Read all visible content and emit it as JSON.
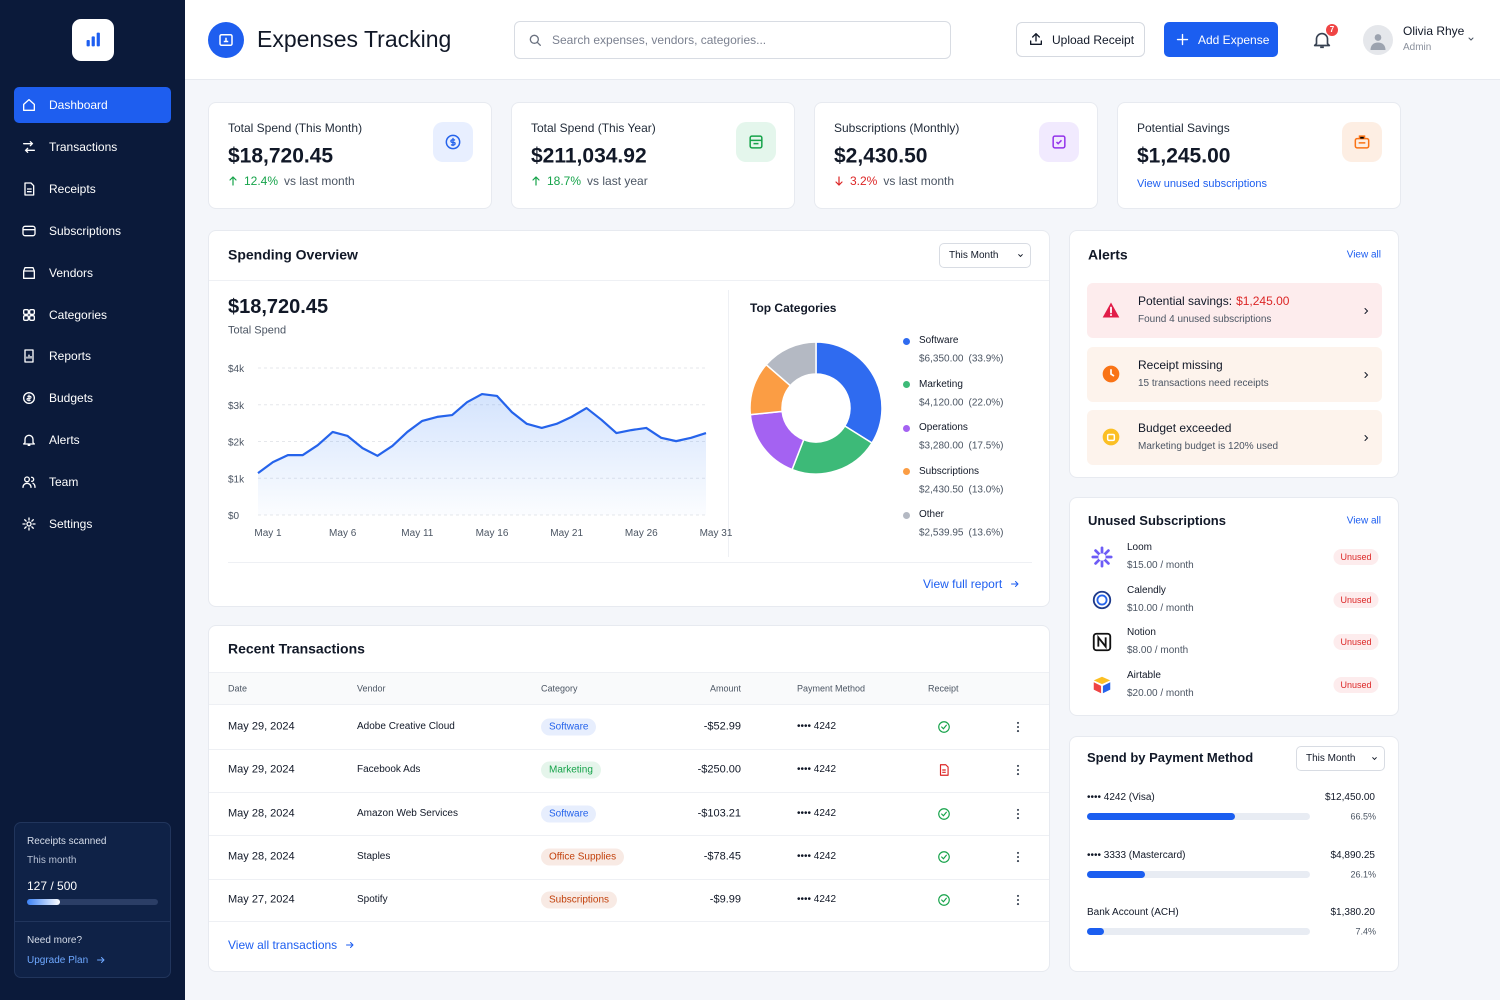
{
  "sidebar": {
    "nav": [
      "Dashboard",
      "Transactions",
      "Receipts",
      "Subscriptions",
      "Vendors",
      "Categories",
      "Reports",
      "Budgets",
      "Alerts",
      "Team",
      "Settings"
    ],
    "usage": {
      "title": "Receipts scanned",
      "period": "This month",
      "label": "127 / 500",
      "used": 127,
      "total": 500
    },
    "upgrade": {
      "question": "Need more?",
      "link": "Upgrade Plan"
    }
  },
  "header": {
    "title": "Expenses Tracking",
    "search_placeholder": "Search expenses, vendors, categories...",
    "upload": "Upload Receipt",
    "add": "Add Expense",
    "notifications": "7",
    "user": {
      "name": "Olivia Rhye",
      "role": "Admin"
    }
  },
  "kpis": [
    {
      "label": "Total Spend (This Month)",
      "value": "$18,720.45",
      "change": "12.4%",
      "comparison": "vs last month",
      "direction": "up"
    },
    {
      "label": "Total Spend (This Year)",
      "value": "$211,034.92",
      "change": "18.7%",
      "comparison": "vs last year",
      "direction": "up"
    },
    {
      "label": "Subscriptions (Monthly)",
      "value": "$2,430.50",
      "change": "3.2%",
      "comparison": "vs last month",
      "direction": "down"
    },
    {
      "label": "Potential Savings",
      "value": "$1,245.00",
      "link": "View unused subscriptions"
    }
  ],
  "spending_overview": {
    "title": "Spending Overview",
    "period": "This Month",
    "total": "$18,720.45",
    "total_label": "Total Spend",
    "link": "View full report",
    "chart": {
      "type": "line",
      "color": "#2563eb",
      "grid": true,
      "x": [
        1,
        2,
        3,
        4,
        5,
        6,
        7,
        8,
        9,
        10,
        11,
        12,
        13,
        14,
        15,
        16,
        17,
        18,
        19,
        20,
        21,
        22,
        23,
        24,
        25,
        26,
        27,
        28,
        29,
        30,
        31
      ],
      "values": [
        1140,
        1440,
        1630,
        1630,
        1900,
        2260,
        2150,
        1820,
        1610,
        1880,
        2260,
        2560,
        2670,
        2720,
        3070,
        3290,
        3240,
        2800,
        2480,
        2370,
        2480,
        2670,
        2910,
        2590,
        2230,
        2310,
        2370,
        2100,
        2010,
        2100,
        2230
      ],
      "xlim": [
        1,
        31
      ],
      "xticks": [
        {
          "value": 1,
          "label": "May 1"
        },
        {
          "value": 6,
          "label": "May 6"
        },
        {
          "value": 11,
          "label": "May 11"
        },
        {
          "value": 16,
          "label": "May 16"
        },
        {
          "value": 21,
          "label": "May 21"
        },
        {
          "value": 26,
          "label": "May 26"
        },
        {
          "value": 31,
          "label": "May 31"
        }
      ],
      "ylim": [
        0,
        4000
      ],
      "yticks": [
        {
          "value": 0,
          "label": "$0"
        },
        {
          "value": 1000,
          "label": "$1k"
        },
        {
          "value": 2000,
          "label": "$2k"
        },
        {
          "value": 3000,
          "label": "$3k"
        },
        {
          "value": 4000,
          "label": "$4k"
        }
      ]
    },
    "categories": {
      "type": "donut",
      "title": "Top Categories",
      "items": [
        {
          "name": "Software",
          "amount": "$6,350.00",
          "share": 33.9,
          "share_label": "(33.9%)",
          "color": "#2f6bf0"
        },
        {
          "name": "Marketing",
          "amount": "$4,120.00",
          "share": 22.0,
          "share_label": "(22.0%)",
          "color": "#3dba78"
        },
        {
          "name": "Operations",
          "amount": "$3,280.00",
          "share": 17.5,
          "share_label": "(17.5%)",
          "color": "#a462f2"
        },
        {
          "name": "Subscriptions",
          "amount": "$2,430.50",
          "share": 13.0,
          "share_label": "(13.0%)",
          "color": "#fb9d44"
        },
        {
          "name": "Other",
          "amount": "$2,539.95",
          "share": 13.6,
          "share_label": "(13.6%)",
          "color": "#b4b9c3"
        }
      ]
    }
  },
  "transactions": {
    "title": "Recent Transactions",
    "columns": [
      "Date",
      "Vendor",
      "Category",
      "Amount",
      "Payment Method",
      "Receipt"
    ],
    "rows": [
      {
        "date": "May 29, 2024",
        "vendor": "Adobe Creative Cloud",
        "category": "Software",
        "category_color": "#2563eb",
        "amount": "-$52.99",
        "payment": "•••• 4242",
        "receipt": true
      },
      {
        "date": "May 29, 2024",
        "vendor": "Facebook Ads",
        "category": "Marketing",
        "category_color": "#16a34a",
        "amount": "-$250.00",
        "payment": "•••• 4242",
        "receipt": false
      },
      {
        "date": "May 28, 2024",
        "vendor": "Amazon Web Services",
        "category": "Software",
        "category_color": "#2563eb",
        "amount": "-$103.21",
        "payment": "•••• 4242",
        "receipt": true
      },
      {
        "date": "May 28, 2024",
        "vendor": "Staples",
        "category": "Office Supplies",
        "category_color": "#c2410c",
        "amount": "-$78.45",
        "payment": "•••• 4242",
        "receipt": true
      },
      {
        "date": "May 27, 2024",
        "vendor": "Spotify",
        "category": "Subscriptions",
        "category_color": "#c2410c",
        "amount": "-$9.99",
        "payment": "•••• 4242",
        "receipt": true
      }
    ],
    "link": "View all transactions"
  },
  "alerts": {
    "title": "Alerts",
    "link": "View all",
    "items": [
      {
        "title": "Potential savings:",
        "highlight": "$1,245.00",
        "detail": "Found 4 unused subscriptions"
      },
      {
        "title": "Receipt missing",
        "detail": "15 transactions need receipts"
      },
      {
        "title": "Budget exceeded",
        "detail": "Marketing budget is 120% used"
      }
    ]
  },
  "unused_subscriptions": {
    "title": "Unused Subscriptions",
    "link": "View all",
    "items": [
      {
        "name": "Loom",
        "price": "$15.00 / month",
        "status": "Unused"
      },
      {
        "name": "Calendly",
        "price": "$10.00 / month",
        "status": "Unused"
      },
      {
        "name": "Notion",
        "price": "$8.00 / month",
        "status": "Unused"
      },
      {
        "name": "Airtable",
        "price": "$20.00 / month",
        "status": "Unused"
      }
    ]
  },
  "payment_methods": {
    "title": "Spend by Payment Method",
    "period": "This Month",
    "items": [
      {
        "name": "•••• 4242 (Visa)",
        "amount": "$12,450.00",
        "share": 66.5,
        "share_label": "66.5%"
      },
      {
        "name": "•••• 3333 (Mastercard)",
        "amount": "$4,890.25",
        "share": 26.1,
        "share_label": "26.1%"
      },
      {
        "name": "Bank Account (ACH)",
        "amount": "$1,380.20",
        "share": 7.4,
        "share_label": "7.4%"
      }
    ]
  }
}
